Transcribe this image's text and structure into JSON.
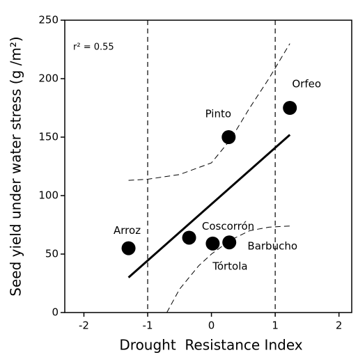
{
  "chart_data": {
    "type": "scatter",
    "x_label": "Drought  Resistance Index",
    "y_label": "Seed yield under water stress (g /m²)",
    "annotation": "r² = 0.55",
    "x": [
      -1.3,
      -0.35,
      0.02,
      0.28,
      0.27,
      1.23
    ],
    "values": [
      55,
      64,
      59,
      60,
      150,
      175
    ],
    "point_labels": [
      "Arroz",
      "Coscorrón",
      "Tórtola",
      "Barbucho",
      "Pinto",
      "Orfeo"
    ],
    "color": "#000000",
    "fit_line": {
      "x": [
        -1.3,
        1.23
      ],
      "y": [
        30,
        152
      ]
    },
    "upper_band": {
      "x": [
        -1.3,
        -1,
        -0.5,
        0,
        0.3,
        0.6,
        0.9,
        1.23
      ],
      "y": [
        113,
        114,
        118,
        128,
        148,
        175,
        200,
        230
      ]
    },
    "lower_band": {
      "x": [
        -0.7,
        -0.5,
        -0.2,
        0,
        0.3,
        0.6,
        0.9,
        1.23
      ],
      "y": [
        0,
        20,
        40,
        50,
        62,
        70,
        73,
        74
      ]
    },
    "reference_lines": [
      -1,
      1
    ],
    "xlim": [
      -2.3,
      2.2
    ],
    "ylim": [
      0,
      250
    ],
    "xticks": [
      -2,
      -1,
      0,
      1,
      2
    ],
    "yticks": [
      0,
      50,
      100,
      150,
      200,
      250
    ]
  }
}
